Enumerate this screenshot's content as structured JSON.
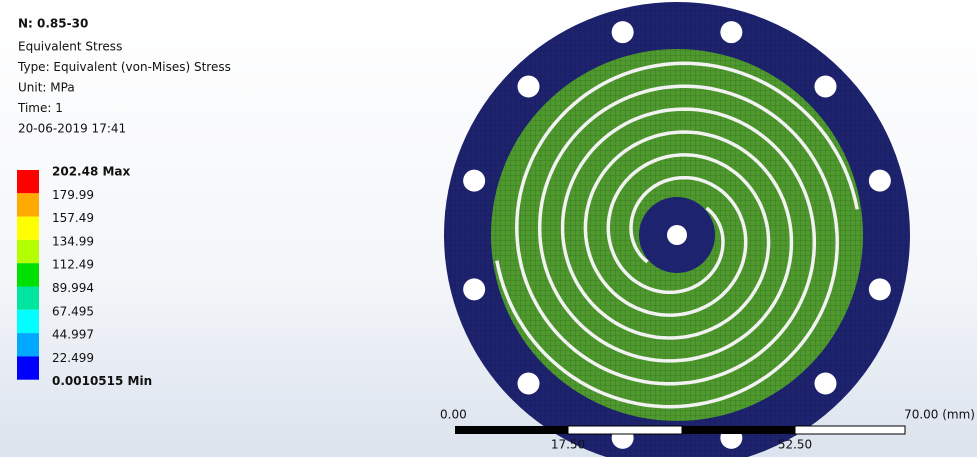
{
  "header": {
    "title": "N: 0.85-30",
    "lines": [
      "Equivalent Stress",
      "Type: Equivalent (von-Mises) Stress",
      "Unit: MPa",
      "Time: 1",
      "20-06-2019 17:41"
    ]
  },
  "legend": {
    "labels": [
      "202.48 Max",
      "179.99",
      "157.49",
      "134.99",
      "112.49",
      "89.994",
      "67.495",
      "44.997",
      "22.499",
      "0.0010515 Min"
    ],
    "colors": [
      "#ff0000",
      "#ffaa00",
      "#ffff00",
      "#b4ff00",
      "#00e000",
      "#00e6a0",
      "#00ffff",
      "#00a8ff",
      "#0000ff"
    ]
  },
  "scale_bar": {
    "labels": [
      "0.00",
      "17.50",
      "52.50",
      "70.00 (mm)"
    ]
  }
}
